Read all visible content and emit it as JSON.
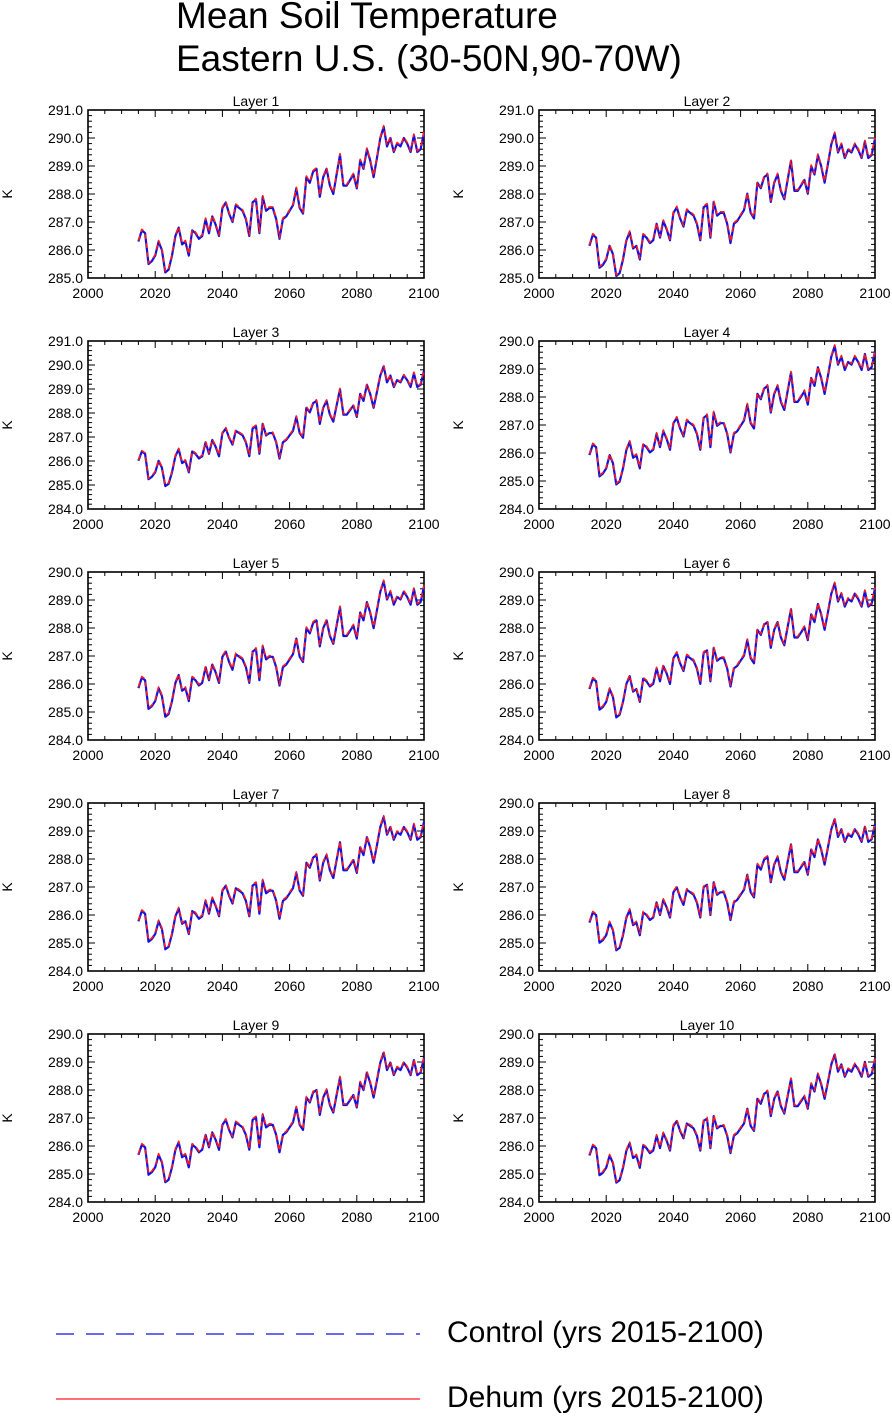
{
  "title": {
    "line1": "Mean Soil Temperature",
    "line2": "Eastern U.S. (30-50N,90-70W)"
  },
  "legend": {
    "control": {
      "label": "Control (yrs 2015-2100)",
      "color": "#1010e0",
      "style": "dashed"
    },
    "dehum": {
      "label": "Dehum (yrs 2015-2100)",
      "color": "#ff1a1a",
      "style": "solid"
    }
  },
  "chart_data": {
    "type": "line",
    "ylabel": "K",
    "xlim": [
      2000,
      2100
    ],
    "xticks": [
      2000,
      2020,
      2040,
      2060,
      2080,
      2100
    ],
    "years": [
      2015,
      2016,
      2017,
      2018,
      2019,
      2020,
      2021,
      2022,
      2023,
      2024,
      2025,
      2026,
      2027,
      2028,
      2029,
      2030,
      2031,
      2032,
      2033,
      2034,
      2035,
      2036,
      2037,
      2038,
      2039,
      2040,
      2041,
      2042,
      2043,
      2044,
      2045,
      2046,
      2047,
      2048,
      2049,
      2050,
      2051,
      2052,
      2053,
      2054,
      2055,
      2056,
      2057,
      2058,
      2059,
      2060,
      2061,
      2062,
      2063,
      2064,
      2065,
      2066,
      2067,
      2068,
      2069,
      2070,
      2071,
      2072,
      2073,
      2074,
      2075,
      2076,
      2077,
      2078,
      2079,
      2080,
      2081,
      2082,
      2083,
      2084,
      2085,
      2086,
      2087,
      2088,
      2089,
      2090,
      2091,
      2092,
      2093,
      2094,
      2095,
      2096,
      2097,
      2098,
      2099,
      2100
    ],
    "series_names": [
      "Control (yrs 2015-2100)",
      "Dehum (yrs 2015-2100)"
    ],
    "layer1_values": [
      286.3,
      286.7,
      286.6,
      285.5,
      285.6,
      285.8,
      286.3,
      286.0,
      285.2,
      285.3,
      285.8,
      286.5,
      286.8,
      286.2,
      286.3,
      285.8,
      286.7,
      286.6,
      286.4,
      286.5,
      287.1,
      286.6,
      287.2,
      286.9,
      286.5,
      287.5,
      287.7,
      287.3,
      287.0,
      287.6,
      287.5,
      287.4,
      287.1,
      286.5,
      287.7,
      287.8,
      286.6,
      287.9,
      287.4,
      287.5,
      287.5,
      287.1,
      286.4,
      287.1,
      287.2,
      287.4,
      287.6,
      288.2,
      287.5,
      287.3,
      288.6,
      288.4,
      288.8,
      288.9,
      287.9,
      288.6,
      288.9,
      288.3,
      288.0,
      288.7,
      289.4,
      288.3,
      288.3,
      288.5,
      288.7,
      288.2,
      289.2,
      288.9,
      289.6,
      289.2,
      288.6,
      289.3,
      290.0,
      290.4,
      289.7,
      290.0,
      289.5,
      289.8,
      289.7,
      290.0,
      289.8,
      289.5,
      290.1,
      289.5,
      289.6,
      290.2
    ],
    "panels": [
      {
        "title": "Layer 1",
        "ylim": [
          285.0,
          291.0
        ],
        "yticks": [
          "285.0",
          "286.0",
          "287.0",
          "288.0",
          "289.0",
          "290.0",
          "291.0"
        ],
        "scale": 1.0,
        "shift": 0.0
      },
      {
        "title": "Layer 2",
        "ylim": [
          285.0,
          291.0
        ],
        "yticks": [
          "285.0",
          "286.0",
          "287.0",
          "288.0",
          "289.0",
          "290.0",
          "291.0"
        ],
        "scale": 0.98,
        "shift": -0.18
      },
      {
        "title": "Layer 3",
        "ylim": [
          284.0,
          291.0
        ],
        "yticks": [
          "284.0",
          "285.0",
          "286.0",
          "287.0",
          "288.0",
          "289.0",
          "290.0",
          "291.0"
        ],
        "scale": 0.96,
        "shift": -0.35
      },
      {
        "title": "Layer 4",
        "ylim": [
          284.0,
          290.0
        ],
        "yticks": [
          "284.0",
          "285.0",
          "286.0",
          "287.0",
          "288.0",
          "289.0",
          "290.0"
        ],
        "scale": 0.95,
        "shift": -0.45
      },
      {
        "title": "Layer 5",
        "ylim": [
          284.0,
          290.0
        ],
        "yticks": [
          "284.0",
          "285.0",
          "286.0",
          "287.0",
          "288.0",
          "289.0",
          "290.0"
        ],
        "scale": 0.93,
        "shift": -0.55
      },
      {
        "title": "Layer 6",
        "ylim": [
          284.0,
          290.0
        ],
        "yticks": [
          "284.0",
          "285.0",
          "286.0",
          "287.0",
          "288.0",
          "289.0",
          "290.0"
        ],
        "scale": 0.92,
        "shift": -0.6
      },
      {
        "title": "Layer 7",
        "ylim": [
          284.0,
          290.0
        ],
        "yticks": [
          "284.0",
          "285.0",
          "286.0",
          "287.0",
          "288.0",
          "289.0",
          "290.0"
        ],
        "scale": 0.91,
        "shift": -0.66
      },
      {
        "title": "Layer 8",
        "ylim": [
          284.0,
          290.0
        ],
        "yticks": [
          "284.0",
          "285.0",
          "286.0",
          "287.0",
          "288.0",
          "289.0",
          "290.0"
        ],
        "scale": 0.9,
        "shift": -0.72
      },
      {
        "title": "Layer 9",
        "ylim": [
          284.0,
          290.0
        ],
        "yticks": [
          "284.0",
          "285.0",
          "286.0",
          "287.0",
          "288.0",
          "289.0",
          "290.0"
        ],
        "scale": 0.89,
        "shift": -0.78
      },
      {
        "title": "Layer 10",
        "ylim": [
          284.0,
          290.0
        ],
        "yticks": [
          "284.0",
          "285.0",
          "286.0",
          "287.0",
          "288.0",
          "289.0",
          "290.0"
        ],
        "scale": 0.88,
        "shift": -0.82
      }
    ]
  }
}
